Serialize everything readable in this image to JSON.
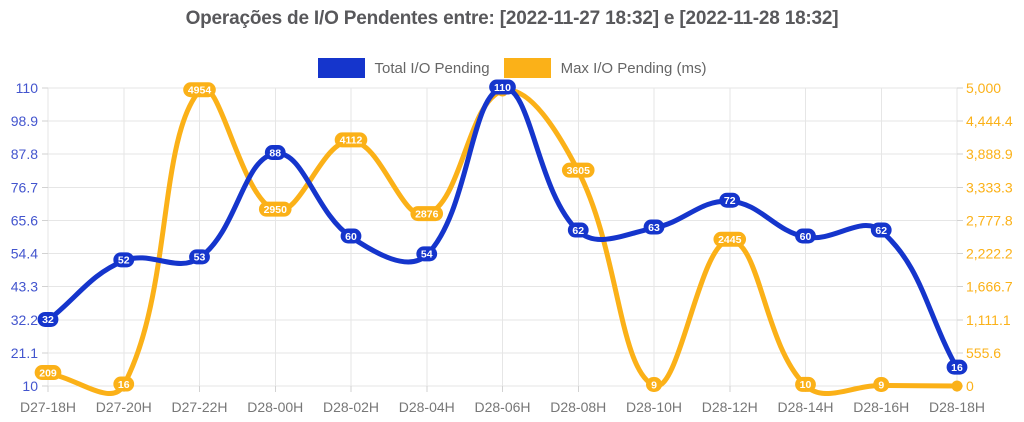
{
  "title": "Operações de I/O Pendentes entre: [2022-11-27 18:32] e [2022-11-28 18:32]",
  "legend": [
    {
      "label": "Total I/O Pending",
      "color": "#1535CC"
    },
    {
      "label": "Max I/O Pending (ms)",
      "color": "#FBB118"
    }
  ],
  "colors": {
    "blue_series": "#1535CC",
    "orange_series": "#FBB118",
    "left_axis_labels": "#4355CE",
    "right_axis_labels": "#FBB118",
    "x_axis_labels": "#777777",
    "gridline": "#E6E6E6",
    "tick_mark": "#D2D2D2",
    "title_text": "#58585B",
    "legend_text": "#666666",
    "point_label_text": "#FFFFFF"
  },
  "chart_data": {
    "type": "line",
    "title": "Operações de I/O Pendentes entre: [2022-11-27 18:32] e [2022-11-28 18:32]",
    "categories": [
      "D27-18H",
      "D27-20H",
      "D27-22H",
      "D28-00H",
      "D28-02H",
      "D28-04H",
      "D28-06H",
      "D28-08H",
      "D28-10H",
      "D28-12H",
      "D28-14H",
      "D28-16H",
      "D28-18H"
    ],
    "series": [
      {
        "name": "Total I/O Pending",
        "axis": "left",
        "color": "#1535CC",
        "values": [
          32,
          52,
          53,
          88,
          60,
          54,
          110,
          62,
          63,
          72,
          60,
          62,
          16
        ],
        "point_labels": [
          "32",
          "52",
          "53",
          "88",
          "60",
          "54",
          "110",
          "62",
          "63",
          "72",
          "60",
          "62",
          "16"
        ]
      },
      {
        "name": "Max I/O Pending (ms)",
        "axis": "right",
        "color": "#FBB118",
        "values": [
          209,
          16,
          4954,
          2950,
          4112,
          2876,
          4950,
          3605,
          9,
          2445,
          10,
          9,
          0
        ],
        "point_labels": [
          "209",
          "16",
          "4954",
          "2950",
          "4112",
          "2876",
          "",
          "3605",
          "9",
          "2445",
          "10",
          "9",
          ""
        ]
      }
    ],
    "left_axis": {
      "min": 10,
      "max": 110,
      "ticks": [
        "110",
        "98.9",
        "87.8",
        "76.7",
        "65.6",
        "54.4",
        "43.3",
        "32.2",
        "21.1",
        "10"
      ]
    },
    "right_axis": {
      "min": 0,
      "max": 5000,
      "ticks": [
        "5,000",
        "4,444.4",
        "3,888.9",
        "3,333.3",
        "2,777.8",
        "2,222.2",
        "1,666.7",
        "1,111.1",
        "555.6",
        "0"
      ]
    },
    "grid": true,
    "legend_position": "top",
    "line_tension": 0.4
  }
}
